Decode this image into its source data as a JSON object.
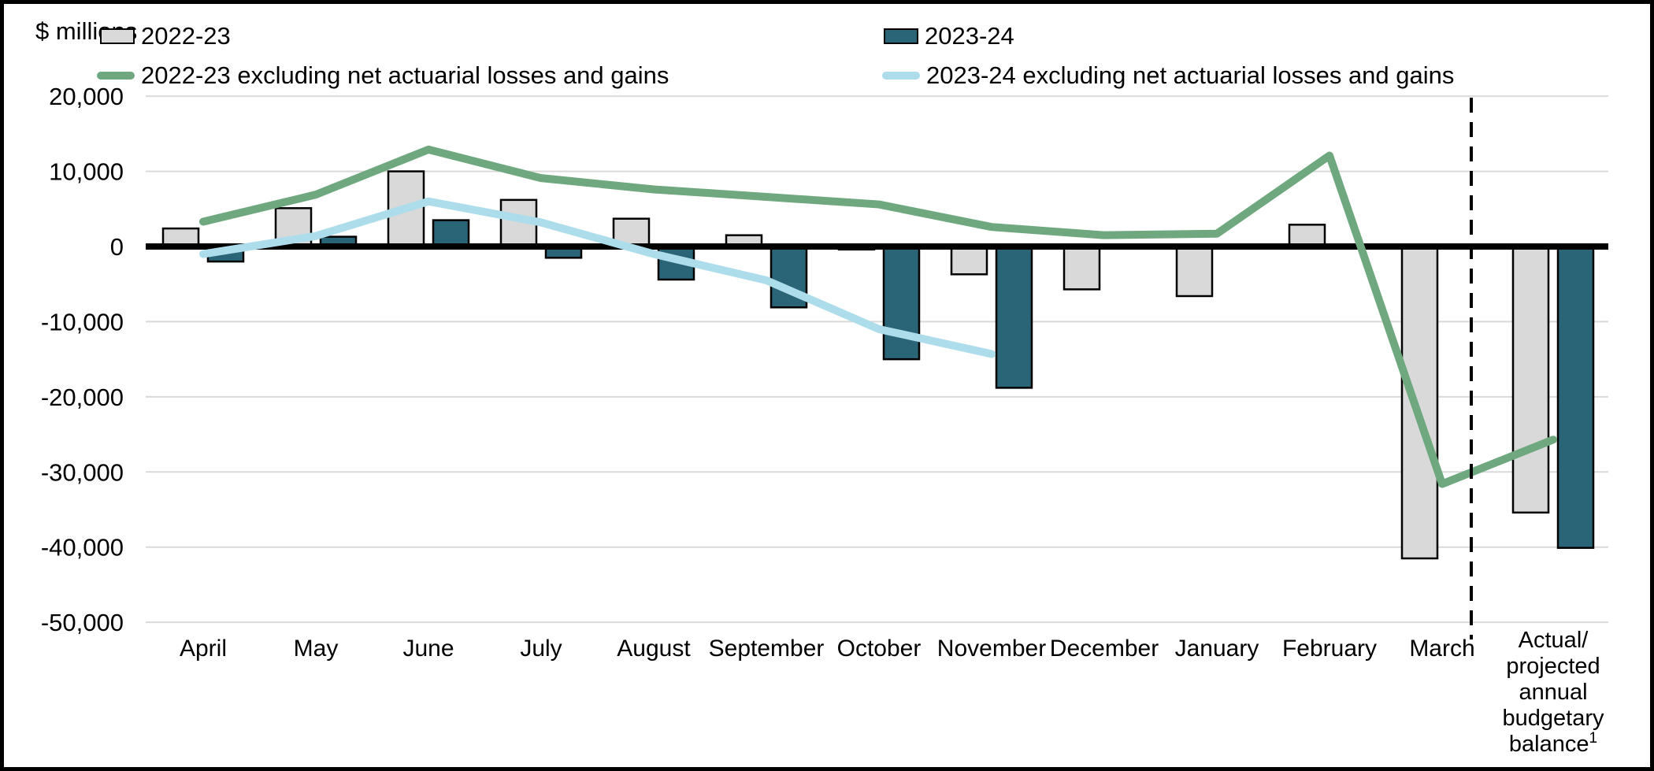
{
  "figure": {
    "y_axis_title": "$ millions"
  },
  "chart_data": {
    "type": "bar",
    "subtype": "grouped-bar-with-lines",
    "title": "$ millions",
    "categories": [
      "April",
      "May",
      "June",
      "July",
      "August",
      "September",
      "October",
      "November",
      "December",
      "January",
      "February",
      "March",
      "Actual/ projected annual budgetary balance¹"
    ],
    "series": [
      {
        "name": "2022-23",
        "type": "bar",
        "color": "#d9d9d9",
        "values": [
          2400,
          5100,
          10000,
          6200,
          3700,
          1500,
          -400,
          -3700,
          -5700,
          -6600,
          2900,
          -41500,
          -35400
        ]
      },
      {
        "name": "2023-24",
        "type": "bar",
        "color": "#2a6577",
        "values": [
          -2000,
          1300,
          3500,
          -1500,
          -4400,
          -8100,
          -15000,
          -18800,
          null,
          null,
          null,
          null,
          -40100
        ]
      },
      {
        "name": "2022-23 excluding net actuarial losses and gains",
        "type": "line",
        "color": "#6fa87e",
        "values": [
          3300,
          6900,
          12900,
          9100,
          7600,
          6600,
          5600,
          2600,
          1500,
          1700,
          12100,
          -31600,
          -25700
        ]
      },
      {
        "name": "2023-24 excluding net actuarial losses and gains",
        "type": "line",
        "color": "#addcea",
        "values": [
          -1000,
          1400,
          6000,
          3200,
          -1000,
          -4500,
          -11000,
          -14300,
          null,
          null,
          null,
          null,
          null
        ]
      }
    ],
    "ylabel": "$ millions",
    "xlabel": "",
    "ylim": [
      -50000,
      20000
    ],
    "grid": true,
    "legend_position": "top",
    "separator_dashed_line_before_category_index": 12
  },
  "axes": {
    "y_tick_values": [
      20000,
      10000,
      0,
      -10000,
      -20000,
      -30000,
      -40000,
      -50000
    ],
    "y_tick_labels": [
      "20,000",
      "10,000",
      "0",
      "-10,000",
      "-20,000",
      "-30,000",
      "-40,000",
      "-50,000"
    ],
    "month_labels": [
      "April",
      "May",
      "June",
      "July",
      "August",
      "September",
      "October",
      "November",
      "December",
      "January",
      "February",
      "March"
    ],
    "annual_label_lines": [
      "Actual/",
      "projected",
      "annual",
      "budgetary",
      "balance"
    ],
    "annual_label_superscript": "1"
  },
  "colors": {
    "bar_2022_23": "#d9d9d9",
    "bar_2023_24": "#2a6577",
    "line_2022_23_excl": "#6fa87e",
    "line_2023_24_excl": "#addcea",
    "gridline": "#d9d9d9",
    "zero_line": "#000000",
    "dashed_separator": "#000000",
    "bar_border": "#000000"
  }
}
